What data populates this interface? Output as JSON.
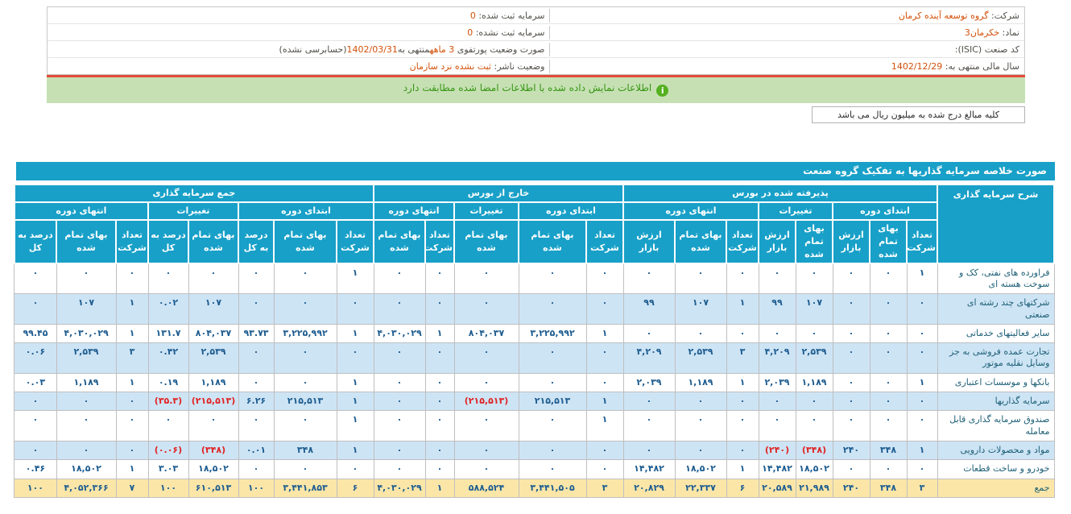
{
  "info": {
    "right_rows": [
      {
        "label": "شرکت:",
        "value": "گروه توسعه آینده کرمان"
      },
      {
        "label": "نماد:",
        "value": "خکرمان3"
      },
      {
        "label": "کد صنعت (ISIC):",
        "value": ""
      },
      {
        "label": "سال مالی منتهی به:",
        "value": "1402/12/29"
      }
    ],
    "left_rows": [
      {
        "label": "سرمایه ثبت شده:",
        "value": "0"
      },
      {
        "label": "سرمایه ثبت نشده:",
        "value": "0"
      },
      {
        "segments": [
          {
            "text": "صورت وضعیت پورتفوی ",
            "accent": false
          },
          {
            "text": "3 ماهه",
            "accent": true
          },
          {
            "text": "منتهی به",
            "accent": false
          },
          {
            "text": "1402/03/31",
            "accent": true
          },
          {
            "text": "(حسابرسی نشده)",
            "accent": false
          }
        ]
      },
      {
        "label": "وضعیت ناشر:",
        "value": "ثبت نشده نزد سازمان"
      }
    ]
  },
  "notice": {
    "icon": "info-icon",
    "icon_glyph": "i",
    "text": "اطلاعات نمایش داده شده با اطلاعات امضا شده مطابقت دارد"
  },
  "unit_note": {
    "text": "کلیه مبالغ درج شده به میلیون ریال می باشد"
  },
  "table": {
    "title": "صورت خلاصه سرمایه گذاریها به تفکیک گروه صنعت",
    "desc_header": "شرح سرمایه گذاری",
    "groups": [
      {
        "label": "پذیرفته شده در بورس",
        "cols": 8
      },
      {
        "label": "خارج از بورس",
        "cols": 5
      },
      {
        "label": "جمع سرمایه گذاری",
        "cols": 8
      }
    ],
    "period_labels": {
      "start": "ابتدای دوره",
      "change": "تغییرات",
      "end": "انتهای دوره"
    },
    "col_labels": {
      "count": "تعداد شرکت",
      "cost": "بهای تمام شده",
      "market": "ارزش بازار",
      "percent": "درصد به کل"
    },
    "structure": {
      "period_spans": [
        [
          3,
          2,
          3
        ],
        [
          2,
          1,
          2
        ],
        [
          3,
          2,
          3
        ]
      ],
      "leaf_cols": [
        [
          "count",
          "cost",
          "market",
          "cost",
          "market",
          "count",
          "cost",
          "market"
        ],
        [
          "count",
          "cost",
          "cost",
          "count",
          "cost"
        ],
        [
          "count",
          "cost",
          "percent",
          "cost",
          "percent",
          "count",
          "cost",
          "percent"
        ]
      ]
    },
    "rows": [
      {
        "desc": "فراورده های نفتی، کک و سوخت هسته ای",
        "cells": [
          "۱",
          "۰",
          "۰",
          "۰",
          "۰",
          "۰",
          "۰",
          "۰",
          "۰",
          "۰",
          "۰",
          "۰",
          "۰",
          "۱",
          "۰",
          "۰",
          "۰",
          "۰",
          "۰",
          "۰",
          "۰"
        ]
      },
      {
        "desc": "شرکتهای چند رشته ای صنعتی",
        "cells": [
          "۰",
          "۰",
          "۰",
          "۱۰۷",
          "۹۹",
          "۱",
          "۱۰۷",
          "۹۹",
          "۰",
          "۰",
          "۰",
          "۰",
          "۰",
          "۰",
          "۰",
          "۰",
          "۱۰۷",
          "۰.۰۲",
          "۱",
          "۱۰۷",
          "۰"
        ]
      },
      {
        "desc": "سایر فعالیتهای خدماتی",
        "cells": [
          "۰",
          "۰",
          "۰",
          "۰",
          "۰",
          "۰",
          "۰",
          "۰",
          "۱",
          "۳,۲۲۵,۹۹۲",
          "۸۰۴,۰۳۷",
          "۱",
          "۴,۰۳۰,۰۲۹",
          "۱",
          "۳,۲۲۵,۹۹۲",
          "۹۳.۷۳",
          "۸۰۴,۰۳۷",
          "۱۳۱.۷",
          "۱",
          "۴,۰۳۰,۰۲۹",
          "۹۹.۴۵"
        ]
      },
      {
        "desc": "تجارت عمده فروشی به جز وسایل نقلیه موتور",
        "cells": [
          "۰",
          "۰",
          "۰",
          "۲,۵۳۹",
          "۴,۲۰۹",
          "۳",
          "۲,۵۳۹",
          "۴,۲۰۹",
          "۰",
          "۰",
          "۰",
          "۰",
          "۰",
          "۰",
          "۰",
          "۰",
          "۲,۵۳۹",
          "۰.۴۲",
          "۳",
          "۲,۵۳۹",
          "۰.۰۶"
        ]
      },
      {
        "desc": "بانکها و موسسات اعتباری",
        "cells": [
          "۱",
          "۰",
          "۰",
          "۱,۱۸۹",
          "۲,۰۳۹",
          "۱",
          "۱,۱۸۹",
          "۲,۰۳۹",
          "۰",
          "۰",
          "۰",
          "۰",
          "۰",
          "۱",
          "۰",
          "۰",
          "۱,۱۸۹",
          "۰.۱۹",
          "۱",
          "۱,۱۸۹",
          "۰.۰۳"
        ]
      },
      {
        "desc": "سرمایه گذاریها",
        "cells": [
          "۰",
          "۰",
          "۰",
          "۰",
          "۰",
          "۰",
          "۰",
          "۰",
          "۱",
          "۲۱۵,۵۱۳",
          "(۲۱۵,۵۱۳)",
          "۰",
          "۰",
          "۱",
          "۲۱۵,۵۱۳",
          "۶.۲۶",
          "(۲۱۵,۵۱۳)",
          "(۳۵.۳)",
          "۰",
          "۰",
          "۰"
        ]
      },
      {
        "desc": "صندوق سرمایه گذاری قابل معامله",
        "cells": [
          "۰",
          "۰",
          "۰",
          "۰",
          "۰",
          "۰",
          "۰",
          "۰",
          "۱",
          "۰",
          "۰",
          "۰",
          "۰",
          "۱",
          "۰",
          "۰",
          "۰",
          "۰",
          "۰",
          "۰",
          "۰"
        ]
      },
      {
        "desc": "مواد و محصولات دارویی",
        "cells": [
          "۱",
          "۳۴۸",
          "۲۴۰",
          "(۳۴۸)",
          "(۲۴۰)",
          "۰",
          "۰",
          "۰",
          "۰",
          "۰",
          "۰",
          "۰",
          "۰",
          "۱",
          "۳۴۸",
          "۰.۰۱",
          "(۳۴۸)",
          "(۰.۰۶)",
          "۰",
          "۰",
          "۰"
        ]
      },
      {
        "desc": "خودرو و ساخت قطعات",
        "cells": [
          "۰",
          "۰",
          "۰",
          "۱۸,۵۰۲",
          "۱۴,۴۸۲",
          "۱",
          "۱۸,۵۰۲",
          "۱۴,۴۸۲",
          "۰",
          "۰",
          "۰",
          "۰",
          "۰",
          "۰",
          "۰",
          "۰",
          "۱۸,۵۰۲",
          "۳.۰۳",
          "۱",
          "۱۸,۵۰۲",
          "۰.۴۶"
        ]
      }
    ],
    "total_row": {
      "desc": "جمع",
      "cells": [
        "۳",
        "۳۴۸",
        "۲۴۰",
        "۲۱,۹۸۹",
        "۲۰,۵۸۹",
        "۶",
        "۲۲,۳۳۷",
        "۲۰,۸۲۹",
        "۳",
        "۳,۴۴۱,۵۰۵",
        "۵۸۸,۵۲۴",
        "۱",
        "۴,۰۳۰,۰۲۹",
        "۶",
        "۳,۴۴۱,۸۵۳",
        "۱۰۰",
        "۶۱۰,۵۱۳",
        "۱۰۰",
        "۷",
        "۴,۰۵۲,۳۶۶",
        "۱۰۰"
      ]
    }
  },
  "colors": {
    "header_teal": "#18a0c8",
    "alt_row_blue": "#cde4f5",
    "total_row_amber": "#fbe6a8",
    "value_accent": "#d2500a",
    "negative_red": "#e02424",
    "notice_green_bg": "#c6e0b4",
    "notice_border_red": "#e24b3a"
  }
}
